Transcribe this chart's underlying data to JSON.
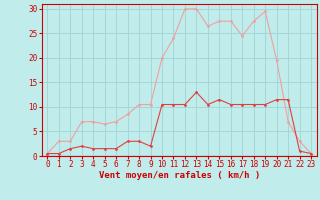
{
  "x": [
    0,
    1,
    2,
    3,
    4,
    5,
    6,
    7,
    8,
    9,
    10,
    11,
    12,
    13,
    14,
    15,
    16,
    17,
    18,
    19,
    20,
    21,
    22,
    23
  ],
  "vent_moyen": [
    0.5,
    0.5,
    1.5,
    2.0,
    1.5,
    1.5,
    1.5,
    3.0,
    3.0,
    2.0,
    10.5,
    10.5,
    10.5,
    13.0,
    10.5,
    11.5,
    10.5,
    10.5,
    10.5,
    10.5,
    11.5,
    11.5,
    1.0,
    0.5
  ],
  "rafales": [
    0.5,
    3.0,
    3.0,
    7.0,
    7.0,
    6.5,
    7.0,
    8.5,
    10.5,
    10.5,
    20.0,
    24.0,
    30.0,
    30.0,
    26.5,
    27.5,
    27.5,
    24.5,
    27.5,
    29.5,
    19.5,
    7.0,
    3.0,
    0.5
  ],
  "line_color_moyen": "#e04040",
  "line_color_rafales": "#f0a0a0",
  "bg_color": "#c0ecec",
  "grid_color": "#a0d4d4",
  "axis_color": "#cc0000",
  "text_color": "#cc0000",
  "xlabel": "Vent moyen/en rafales ( km/h )",
  "ylabel_ticks": [
    0,
    5,
    10,
    15,
    20,
    25,
    30
  ],
  "xlim": [
    -0.5,
    23.5
  ],
  "ylim": [
    0,
    31
  ],
  "label_fontsize": 6.5,
  "tick_fontsize": 5.5
}
